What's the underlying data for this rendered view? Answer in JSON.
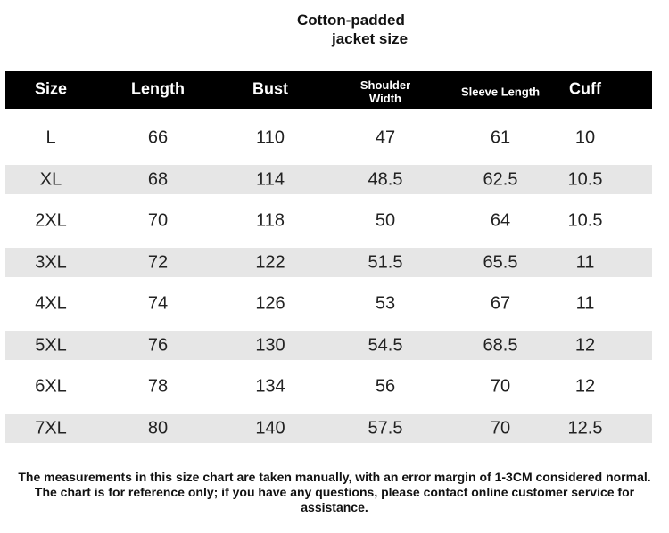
{
  "title_lines": [
    "Cotton-padded",
    "jacket size"
  ],
  "table": {
    "headers": [
      "Size",
      "Length",
      "Bust",
      "Shoulder Width",
      "Sleeve Length",
      "Cuff"
    ],
    "rows": [
      [
        "L",
        "66",
        "110",
        "47",
        "61",
        "10"
      ],
      [
        "XL",
        "68",
        "114",
        "48.5",
        "62.5",
        "10.5"
      ],
      [
        "2XL",
        "70",
        "118",
        "50",
        "64",
        "10.5"
      ],
      [
        "3XL",
        "72",
        "122",
        "51.5",
        "65.5",
        "11"
      ],
      [
        "4XL",
        "74",
        "126",
        "53",
        "67",
        "11"
      ],
      [
        "5XL",
        "76",
        "130",
        "54.5",
        "68.5",
        "12"
      ],
      [
        "6XL",
        "78",
        "134",
        "56",
        "70",
        "12"
      ],
      [
        "7XL",
        "80",
        "140",
        "57.5",
        "70",
        "12.5"
      ]
    ]
  },
  "note_lines": [
    "The measurements in this size chart are taken manually, with an error margin of 1-3CM considered normal.",
    "The chart is for reference only; if you have any questions, please contact online customer service for",
    "assistance."
  ]
}
